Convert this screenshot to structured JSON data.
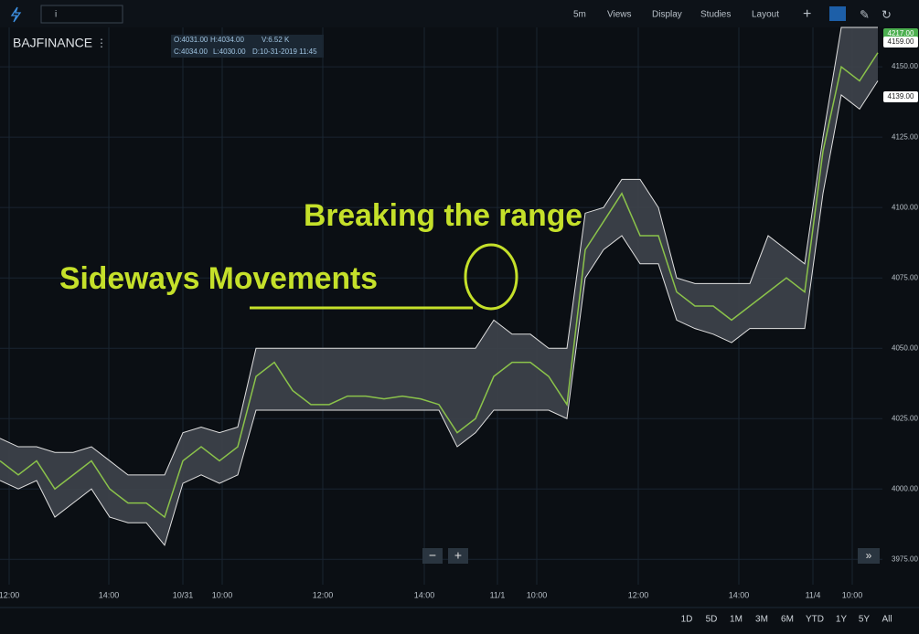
{
  "toolbar": {
    "search": "i",
    "interval": "5m",
    "menus": [
      "Views",
      "Display",
      "Studies",
      "Layout"
    ]
  },
  "symbol": "BAJFINANCE",
  "ohlc": [
    "O:4031.00",
    "H:4034.00",
    "V:6.52 K",
    "C:4034.00",
    "L:4030.00",
    "D:10-31-2019 11:45"
  ],
  "price_tags": [
    {
      "text": "4217.00",
      "color": "#4caf50"
    },
    {
      "text": "4159.00",
      "color": "#ffffff"
    },
    {
      "text": "4139.00",
      "color": "#ffffff"
    }
  ],
  "periods": [
    "1D",
    "5D",
    "1M",
    "3M",
    "6M",
    "YTD",
    "1Y",
    "5Y",
    "All"
  ],
  "chart_data": {
    "type": "band",
    "annotations": [
      "Breaking the range",
      "Sideways Movements"
    ],
    "x": [
      0,
      2,
      4,
      6,
      8,
      10,
      12,
      14,
      16,
      18,
      20,
      22,
      24,
      26,
      28,
      30,
      32,
      34,
      36,
      38,
      40,
      42,
      44,
      46,
      48,
      50,
      52,
      54,
      56,
      58,
      60,
      62,
      64,
      66,
      68,
      70,
      72,
      74,
      76,
      78,
      80,
      82,
      84,
      86,
      88,
      90,
      92,
      94,
      96
    ],
    "series": [
      {
        "color": "#e0e0e0",
        "values": [
          4018,
          4015,
          4015,
          4013,
          4013,
          4015,
          4010,
          4005,
          4005,
          4005,
          4020,
          4022,
          4020,
          4022,
          4050,
          4050,
          4050,
          4050,
          4050,
          4050,
          4050,
          4050,
          4050,
          4050,
          4050,
          4050,
          4050,
          4060,
          4055,
          4055,
          4050,
          4050,
          4098,
          4100,
          4110,
          4110,
          4100,
          4075,
          4073,
          4073,
          4073,
          4073,
          4090,
          4085,
          4080,
          4125,
          4164,
          4164,
          4164
        ]
      },
      {
        "color": "#e0e0e0",
        "values": [
          4003,
          4000,
          4003,
          3990,
          3995,
          4000,
          3990,
          3988,
          3988,
          3980,
          4002,
          4005,
          4002,
          4005,
          4028,
          4028,
          4028,
          4028,
          4028,
          4028,
          4028,
          4028,
          4028,
          4028,
          4028,
          4015,
          4020,
          4028,
          4028,
          4028,
          4028,
          4025,
          4075,
          4085,
          4090,
          4080,
          4080,
          4060,
          4057,
          4055,
          4052,
          4057,
          4057,
          4057,
          4057,
          4105,
          4140,
          4135,
          4145
        ]
      },
      {
        "color": "#8bc34a",
        "values": [
          4010,
          4005,
          4010,
          4000,
          4005,
          4010,
          4000,
          3995,
          3995,
          3990,
          4010,
          4015,
          4010,
          4015,
          4040,
          4045,
          4035,
          4030,
          4030,
          4033,
          4033,
          4032,
          4033,
          4032,
          4030,
          4020,
          4025,
          4040,
          4045,
          4045,
          4040,
          4030,
          4085,
          4095,
          4105,
          4090,
          4090,
          4070,
          4065,
          4065,
          4060,
          4065,
          4070,
          4075,
          4070,
          4120,
          4150,
          4145,
          4155
        ]
      }
    ],
    "xlim": [
      0,
      96.5
    ],
    "ylim": [
      3966,
      4164
    ],
    "yticks": [
      {
        "value": 3975,
        "label": "3975.00"
      },
      {
        "value": 4000,
        "label": "4000.00"
      },
      {
        "value": 4025,
        "label": "4025.00"
      },
      {
        "value": 4050,
        "label": "4050.00"
      },
      {
        "value": 4075,
        "label": "4075.00"
      },
      {
        "value": 4100,
        "label": "4100.00"
      },
      {
        "value": 4125,
        "label": "4125.00"
      },
      {
        "value": 4150,
        "label": "4150.00"
      }
    ],
    "xticks": [
      {
        "value": 1,
        "label": "12:00"
      },
      {
        "value": 11.9,
        "label": "14:00"
      },
      {
        "value": 20,
        "label": "10/31"
      },
      {
        "value": 24.3,
        "label": "10:00"
      },
      {
        "value": 35.3,
        "label": "12:00"
      },
      {
        "value": 46.4,
        "label": "14:00"
      },
      {
        "value": 54.4,
        "label": "11/1"
      },
      {
        "value": 58.7,
        "label": "10:00"
      },
      {
        "value": 69.8,
        "label": "12:00"
      },
      {
        "value": 80.8,
        "label": "14:00"
      },
      {
        "value": 88.9,
        "label": "11/4"
      },
      {
        "value": 93.2,
        "label": "10:00"
      }
    ],
    "grid": true
  }
}
